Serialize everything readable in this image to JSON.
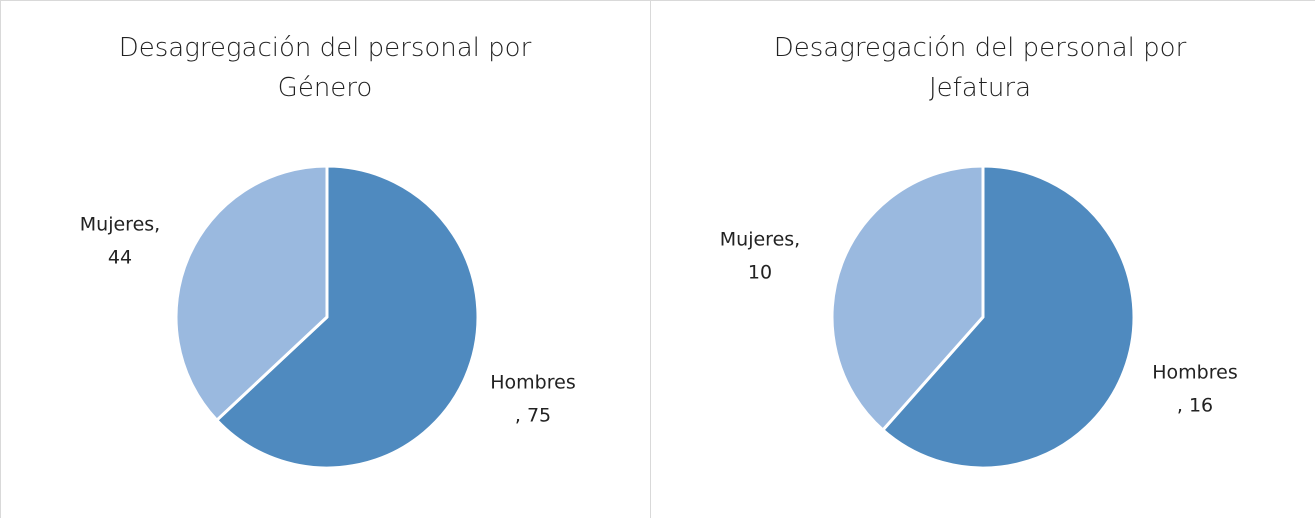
{
  "chart_data": [
    {
      "type": "pie",
      "title": "Desagregación del personal por Género",
      "values": [
        75,
        44
      ],
      "value_labels": [
        [
          "Hombres",
          ", 75"
        ],
        [
          "Mujeres,",
          "44"
        ]
      ],
      "colors": [
        "#4f8abf",
        "#9ab9df"
      ]
    },
    {
      "type": "pie",
      "title": "Desagregación del personal por Jefatura",
      "values": [
        16,
        10
      ],
      "value_labels": [
        [
          "Hombres",
          ", 16"
        ],
        [
          "Mujeres,",
          "10"
        ]
      ],
      "colors": [
        "#4f8abf",
        "#9ab9df"
      ]
    }
  ]
}
